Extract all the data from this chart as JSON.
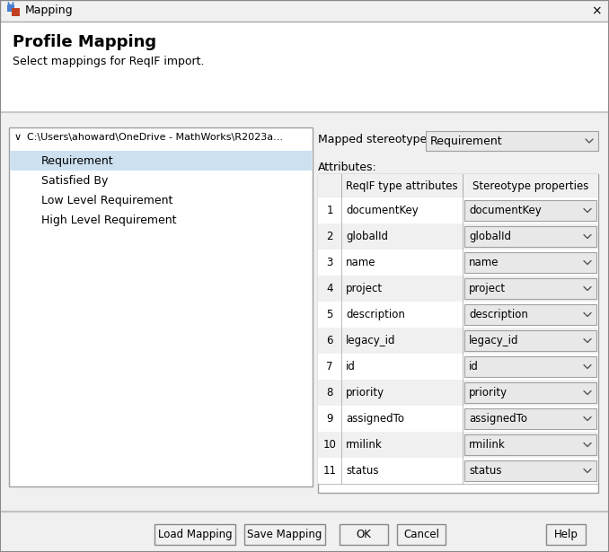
{
  "title": "Mapping",
  "bg_color": "#f0f0f0",
  "header_title": "Profile Mapping",
  "header_subtitle": "Select mappings for ReqIF import.",
  "tree_label": "C:\\Users\\ahoward\\OneDrive - MathWorks\\R2023a...",
  "tree_items": [
    "Requirement",
    "Satisfied By",
    "Low Level Requirement",
    "High Level Requirement"
  ],
  "selected_item": "Requirement",
  "mapped_stereotype_label": "Mapped stereotype:",
  "mapped_stereotype_value": "Requirement",
  "attributes_label": "Attributes:",
  "col1_header": "ReqIF type attributes",
  "col2_header": "Stereotype properties",
  "rows": [
    [
      1,
      "documentKey",
      "documentKey"
    ],
    [
      2,
      "globalId",
      "globalId"
    ],
    [
      3,
      "name",
      "name"
    ],
    [
      4,
      "project",
      "project"
    ],
    [
      5,
      "description",
      "description"
    ],
    [
      6,
      "legacy_id",
      "legacy_id"
    ],
    [
      7,
      "id",
      "id"
    ],
    [
      8,
      "priority",
      "priority"
    ],
    [
      9,
      "assignedTo",
      "assignedTo"
    ],
    [
      10,
      "rmilink",
      "rmilink"
    ],
    [
      11,
      "status",
      "status"
    ]
  ],
  "buttons": [
    "Load Mapping",
    "Save Mapping",
    "OK",
    "Cancel",
    "Help"
  ],
  "white": "#ffffff",
  "light_gray": "#f0f0f0",
  "mid_gray": "#c8c8c8",
  "dark_gray": "#808080",
  "text_color": "#000000",
  "selected_bg": "#cce0f0",
  "dropdown_bg": "#e8e8e8",
  "border_color": "#a0a0a0",
  "title_bar_bg": "#f0f0f0",
  "panel_bg": "#f0f0f0",
  "white_panel": "#ffffff",
  "icon_blue": "#3060c0",
  "icon_red": "#c03020",
  "separator_color": "#c0c0c0"
}
